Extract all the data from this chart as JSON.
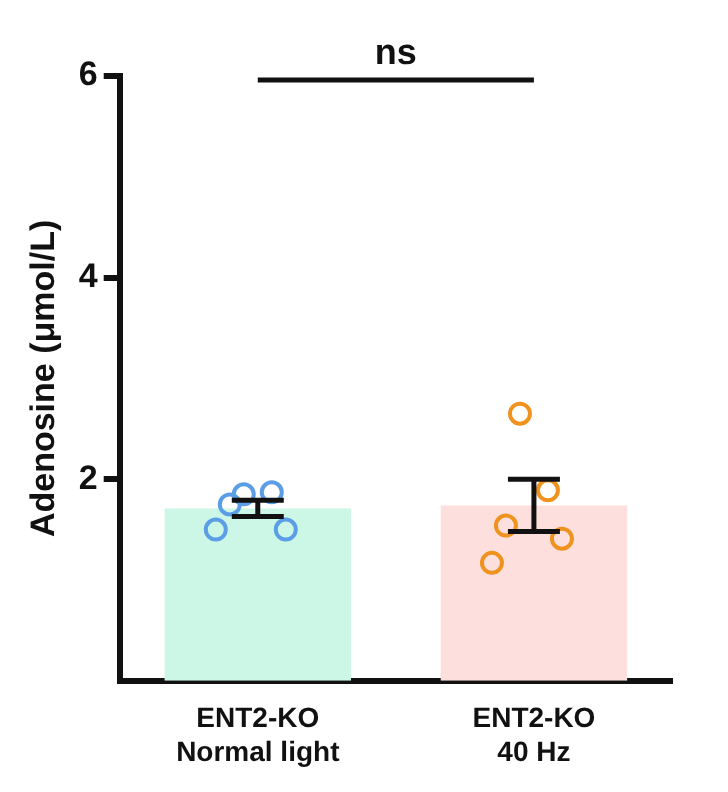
{
  "chart_data": {
    "type": "bar",
    "ylabel": "Adenosine (μmol/L)",
    "categories": [
      "ENT2-KO\nNormal light",
      "ENT2-KO\n40 Hz"
    ],
    "values": [
      1.71,
      1.74
    ],
    "colors": [
      "#ccf7e6",
      "#fde0de"
    ],
    "errors": [
      [
        1.63,
        1.79
      ],
      [
        1.48,
        2.0
      ]
    ],
    "series": [
      {
        "type": "scatter",
        "color": "#5b9ee6",
        "x": [
          "ENT2-KO\nNormal light",
          "ENT2-KO\nNormal light",
          "ENT2-KO\nNormal light",
          "ENT2-KO\nNormal light",
          "ENT2-KO\nNormal light"
        ],
        "values": [
          1.85,
          1.87,
          1.75,
          1.5,
          1.5
        ]
      },
      {
        "type": "scatter",
        "color": "#f0931e",
        "x": [
          "ENT2-KO\n40 Hz",
          "ENT2-KO\n40 Hz",
          "ENT2-KO\n40 Hz",
          "ENT2-KO\n40 Hz",
          "ENT2-KO\n40 Hz"
        ],
        "values": [
          2.65,
          1.89,
          1.54,
          1.41,
          1.17
        ]
      }
    ],
    "annotations": [
      "ns"
    ],
    "ylim": [
      0,
      6
    ],
    "yticks": [
      2,
      4,
      6
    ],
    "grid": false,
    "legend": false,
    "marker": "circle"
  }
}
